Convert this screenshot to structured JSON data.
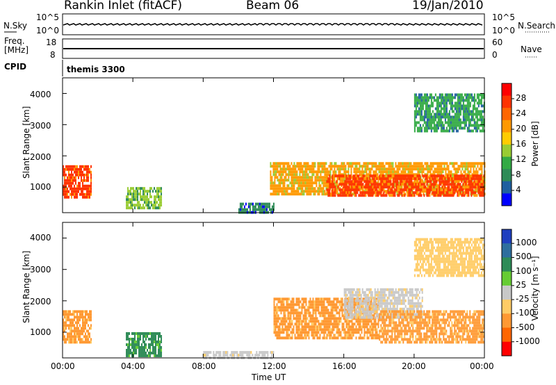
{
  "header": {
    "title": "Rankin Inlet (fitACF)",
    "beam": "Beam 06",
    "date": "19/Jan/2010"
  },
  "top_panels": {
    "nsky_label": "N.Sky",
    "nsky_ticks": [
      "10^5",
      "10^0"
    ],
    "nsearch_label": "N.Search",
    "freq_label": "Freq.",
    "freq_unit": "[MHz]",
    "freq_ticks": [
      "18",
      "8"
    ],
    "nave_ticks": [
      "60",
      "0"
    ],
    "nave_label": "Nave",
    "cpid_label": "CPID",
    "cpid_value": "themis 3300"
  },
  "colorbars": {
    "power": {
      "label": "Power [dB]",
      "ticks": [
        "28",
        "24",
        "20",
        "16",
        "12",
        "8",
        "4"
      ],
      "colors": [
        "#ff0000",
        "#ff3300",
        "#ff6600",
        "#ff9900",
        "#ffcc00",
        "#99cc33",
        "#33aa44",
        "#2e8b57",
        "#1f5fa0",
        "#0000ff"
      ]
    },
    "velocity": {
      "label": "Velocity [m s⁻¹]",
      "ticks": [
        "1000",
        "500",
        "100",
        "25",
        "-25",
        "-100",
        "-500",
        "-1000"
      ],
      "colors": [
        "#1f3fbf",
        "#2e6e9e",
        "#2e8b57",
        "#66cc33",
        "#c8c8c8",
        "#ffcc66",
        "#ff9933",
        "#ff6600",
        "#ff0000"
      ]
    }
  },
  "axes": {
    "ylabel": "Slant Range [km]",
    "xlabel": "Time UT",
    "x_ticks": [
      "00:00",
      "04:00",
      "08:00",
      "12:00",
      "16:00",
      "20:00",
      "00:00"
    ],
    "y_ticks": [
      "1000",
      "2000",
      "3000",
      "4000"
    ]
  },
  "chart_data": [
    {
      "type": "heatmap",
      "title": "",
      "variable": "Power",
      "unit": "dB",
      "x_unit": "hours UT",
      "xlim": [
        0,
        24
      ],
      "ylim": [
        180,
        4500
      ],
      "regions": [
        {
          "x": [
            0.0,
            1.6
          ],
          "y": [
            700,
            1700
          ],
          "value": 26
        },
        {
          "x": [
            3.6,
            5.6
          ],
          "y": [
            300,
            1000
          ],
          "value": 16
        },
        {
          "x": [
            10.0,
            12.0
          ],
          "y": [
            180,
            500
          ],
          "value": 8
        },
        {
          "x": [
            11.8,
            24.0
          ],
          "y": [
            800,
            1800
          ],
          "value": 20
        },
        {
          "x": [
            15.0,
            24.0
          ],
          "y": [
            700,
            1400
          ],
          "value": 28
        },
        {
          "x": [
            20.0,
            24.0
          ],
          "y": [
            2800,
            4000
          ],
          "value": 12
        }
      ]
    },
    {
      "type": "heatmap",
      "title": "",
      "variable": "Velocity",
      "unit": "m s-1",
      "x_unit": "hours UT",
      "xlim": [
        0,
        24
      ],
      "ylim": [
        180,
        4500
      ],
      "regions": [
        {
          "x": [
            0.0,
            1.6
          ],
          "y": [
            700,
            1700
          ],
          "value": -150
        },
        {
          "x": [
            3.6,
            5.6
          ],
          "y": [
            250,
            1000
          ],
          "value": 200
        },
        {
          "x": [
            8.0,
            12.0
          ],
          "y": [
            180,
            400
          ],
          "value": 0
        },
        {
          "x": [
            12.0,
            18.0
          ],
          "y": [
            800,
            2100
          ],
          "value": -200
        },
        {
          "x": [
            16.0,
            20.5
          ],
          "y": [
            1500,
            2400
          ],
          "value": 0
        },
        {
          "x": [
            18.0,
            24.0
          ],
          "y": [
            700,
            1700
          ],
          "value": -200
        },
        {
          "x": [
            20.0,
            24.0
          ],
          "y": [
            2800,
            4000
          ],
          "value": -100
        }
      ]
    }
  ]
}
